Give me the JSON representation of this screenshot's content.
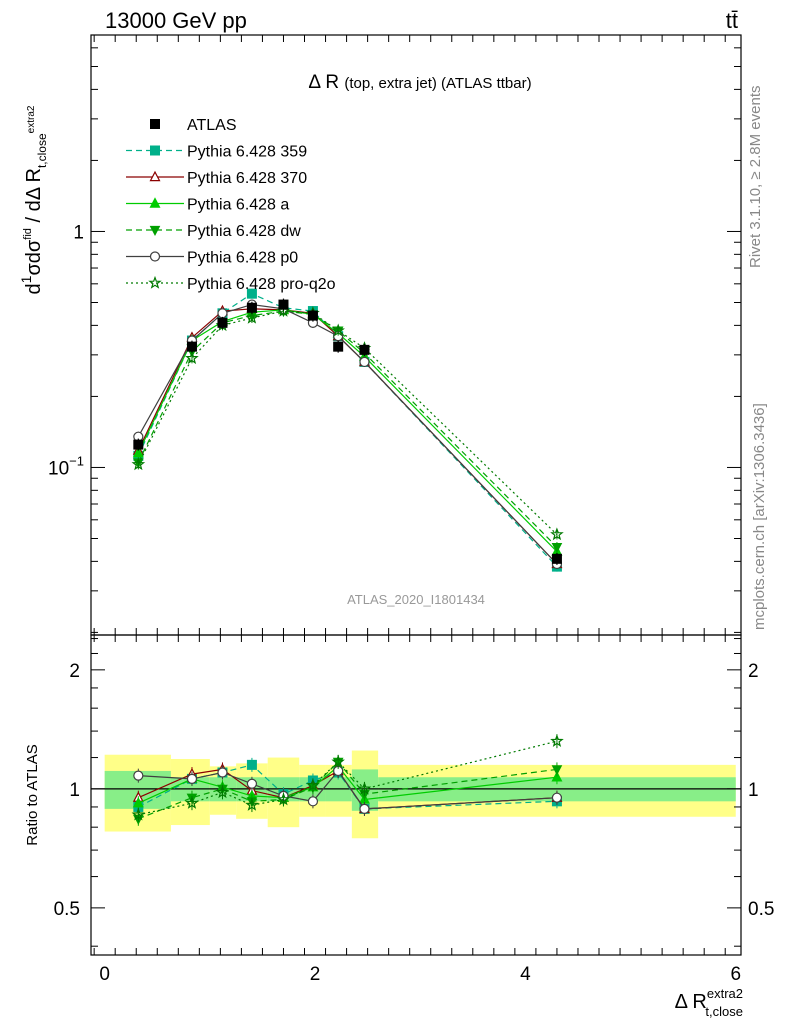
{
  "header": {
    "beam": "13000 GeV pp",
    "process": "tt̄"
  },
  "side_labels": {
    "rivet": "Rivet 3.1.10, ≥ 2.8M events",
    "mcplots": "mcplots.cern.ch [arXiv:1306.3436]"
  },
  "chart_data": [
    {
      "type": "line",
      "title": "Δ R (top, extra jet) (ATLAS ttbar)",
      "title_main": "Δ R",
      "title_sub": "(top, extra jet) (ATLAS ttbar)",
      "analysis_id": "ATLAS_2020_I1801434",
      "ylabel": "1/σ dσ^fid / dΔ R_t,close^extra2",
      "yscale": "log",
      "xlim": [
        -0.13,
        6.05
      ],
      "ylim": [
        0.0195,
        6.8
      ],
      "y_ticks": [
        {
          "value": 0.1,
          "base": "10",
          "exp": "−1"
        },
        {
          "value": 1,
          "label": "1"
        }
      ],
      "legend_position": "top-left",
      "data": {
        "name": "ATLAS",
        "x": [
          0.32,
          0.83,
          1.12,
          1.4,
          1.7,
          1.98,
          2.22,
          2.47,
          4.3
        ],
        "y": [
          0.125,
          0.325,
          0.41,
          0.475,
          0.49,
          0.44,
          0.325,
          0.315,
          0.041
        ]
      },
      "series": [
        {
          "name": "Pythia 6.428 359",
          "color": "#00b08a",
          "marker": "square",
          "dash": "dashed",
          "y": [
            0.112,
            0.345,
            0.45,
            0.545,
            0.475,
            0.46,
            0.36,
            0.28,
            0.038
          ]
        },
        {
          "name": "Pythia 6.428 370",
          "color": "#8b0000",
          "marker": "triangle-open",
          "dash": "solid",
          "y": [
            0.118,
            0.355,
            0.46,
            0.47,
            0.465,
            0.45,
            0.36,
            0.28,
            0.039
          ]
        },
        {
          "name": "Pythia 6.428 a",
          "color": "#00cc00",
          "marker": "triangle",
          "dash": "solid",
          "y": [
            0.115,
            0.345,
            0.415,
            0.455,
            0.465,
            0.445,
            0.37,
            0.295,
            0.044
          ]
        },
        {
          "name": "Pythia 6.428 dw",
          "color": "#00a000",
          "marker": "triangle-down",
          "dash": "dashed",
          "y": [
            0.105,
            0.31,
            0.41,
            0.44,
            0.46,
            0.445,
            0.38,
            0.305,
            0.046
          ]
        },
        {
          "name": "Pythia 6.428 p0",
          "color": "#404040",
          "marker": "circle-open",
          "dash": "solid",
          "y": [
            0.135,
            0.345,
            0.45,
            0.49,
            0.47,
            0.41,
            0.36,
            0.28,
            0.039
          ]
        },
        {
          "name": "Pythia 6.428 pro-q2o",
          "color": "#007a00",
          "marker": "star-open",
          "dash": "dotted",
          "y": [
            0.103,
            0.29,
            0.4,
            0.43,
            0.46,
            0.45,
            0.38,
            0.32,
            0.052
          ]
        }
      ]
    },
    {
      "type": "line",
      "ylabel": "Ratio to ATLAS",
      "xlabel": "Δ R_t,close^extra2",
      "xlabel_main": "Δ R",
      "xlabel_sup": "extra2",
      "xlabel_sub": "t,close",
      "xlim": [
        -0.13,
        6.05
      ],
      "ylim": [
        0.38,
        2.45
      ],
      "x_ticks": [
        0,
        2,
        4,
        6
      ],
      "y_ticks": [
        0.5,
        1,
        2
      ],
      "x": [
        0.32,
        0.83,
        1.12,
        1.4,
        1.7,
        1.98,
        2.22,
        2.47,
        4.3
      ],
      "bin_edges": [
        0,
        0.63,
        1.0,
        1.25,
        1.55,
        1.85,
        2.1,
        2.35,
        2.6,
        6.0
      ],
      "band_stat": [
        0.11,
        0.07,
        0.07,
        0.07,
        0.07,
        0.07,
        0.07,
        0.12,
        0.07
      ],
      "band_total": [
        0.22,
        0.19,
        0.14,
        0.16,
        0.2,
        0.15,
        0.15,
        0.25,
        0.15
      ],
      "series": [
        {
          "name": "Pythia 6.428 359",
          "y": [
            0.9,
            1.06,
            1.1,
            1.15,
            0.97,
            1.05,
            1.1,
            0.89,
            0.93
          ]
        },
        {
          "name": "Pythia 6.428 370",
          "y": [
            0.95,
            1.09,
            1.12,
            0.99,
            0.95,
            1.02,
            1.11,
            0.89,
            0.95
          ]
        },
        {
          "name": "Pythia 6.428 a",
          "y": [
            0.92,
            1.06,
            1.01,
            0.96,
            0.95,
            1.01,
            1.14,
            0.94,
            1.07
          ]
        },
        {
          "name": "Pythia 6.428 dw",
          "y": [
            0.84,
            0.95,
            1.0,
            0.93,
            0.94,
            1.01,
            1.17,
            0.97,
            1.12
          ]
        },
        {
          "name": "Pythia 6.428 p0",
          "y": [
            1.08,
            1.06,
            1.1,
            1.03,
            0.96,
            0.93,
            1.11,
            0.89,
            0.95
          ]
        },
        {
          "name": "Pythia 6.428 pro-q2o",
          "y": [
            0.86,
            0.92,
            0.98,
            0.91,
            0.94,
            1.02,
            1.17,
            1.0,
            1.32
          ]
        }
      ]
    }
  ]
}
